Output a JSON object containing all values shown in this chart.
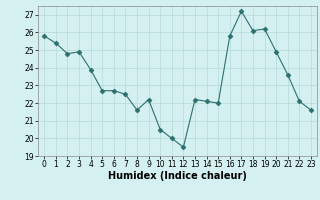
{
  "x": [
    0,
    1,
    2,
    3,
    4,
    5,
    6,
    7,
    8,
    9,
    10,
    11,
    12,
    13,
    14,
    15,
    16,
    17,
    18,
    19,
    20,
    21,
    22,
    23
  ],
  "y": [
    25.8,
    25.4,
    24.8,
    24.9,
    23.9,
    22.7,
    22.7,
    22.5,
    21.6,
    22.2,
    20.5,
    20.0,
    19.5,
    22.2,
    22.1,
    22.0,
    25.8,
    27.2,
    26.1,
    26.2,
    24.9,
    23.6,
    22.1,
    21.6
  ],
  "xlabel": "Humidex (Indice chaleur)",
  "ylim": [
    19,
    27.5
  ],
  "yticks": [
    19,
    20,
    21,
    22,
    23,
    24,
    25,
    26,
    27
  ],
  "xticks": [
    0,
    1,
    2,
    3,
    4,
    5,
    6,
    7,
    8,
    9,
    10,
    11,
    12,
    13,
    14,
    15,
    16,
    17,
    18,
    19,
    20,
    21,
    22,
    23
  ],
  "line_color": "#2d7070",
  "marker": "D",
  "marker_size": 2.5,
  "bg_color": "#d4f0f0",
  "grid_color": "#b8dada",
  "fig_bg": "#d4f0f0",
  "tick_fontsize": 5.5,
  "xlabel_fontsize": 7
}
